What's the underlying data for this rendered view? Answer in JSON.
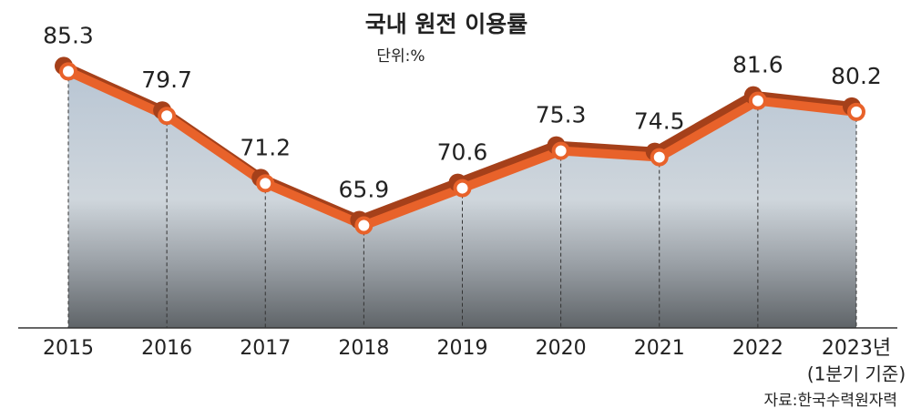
{
  "chart_data": {
    "type": "line",
    "title": "국내 원전 이용률",
    "subtitle": "단위:%",
    "categories": [
      "2015",
      "2016",
      "2017",
      "2018",
      "2019",
      "2020",
      "2021",
      "2022",
      "2023년"
    ],
    "x_note": "(1분기 기준)",
    "values": [
      85.3,
      79.7,
      71.2,
      65.9,
      70.6,
      75.3,
      74.5,
      81.6,
      80.2
    ],
    "value_labels": [
      "85.3",
      "79.7",
      "71.2",
      "65.9",
      "70.6",
      "75.3",
      "74.5",
      "81.6",
      "80.2"
    ],
    "color": "#e8622a",
    "ylim": [
      53,
      92
    ],
    "source": "자료:한국수력원자력"
  }
}
